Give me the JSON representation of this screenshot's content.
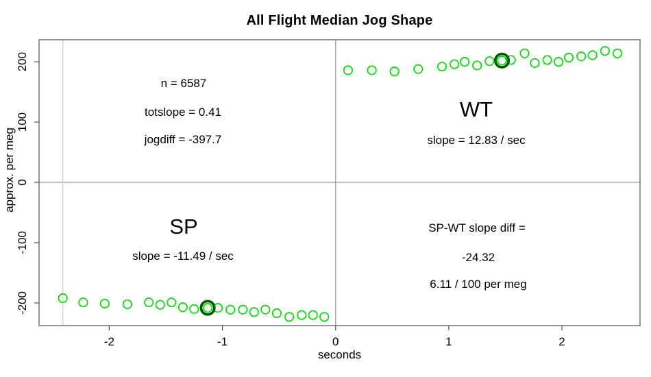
{
  "chart_data": {
    "type": "scatter",
    "title": "All Flight Median Jog Shape",
    "xlabel": "seconds",
    "ylabel": "approx. per meg",
    "xlim": [
      -2.62,
      2.69
    ],
    "ylim": [
      -237.5,
      236.5
    ],
    "x_ticks": [
      -2,
      -1,
      0,
      1,
      2
    ],
    "y_ticks": [
      -200,
      -100,
      0,
      100,
      200
    ],
    "grid": false,
    "legend": "none",
    "point_color": "#00dd00",
    "highlight_color": "#005c00",
    "axis_color": "#4f4f4f",
    "marker": "open-circle",
    "series": [
      {
        "name": "SP",
        "points": [
          [
            -2.41,
            -192
          ],
          [
            -2.23,
            -199
          ],
          [
            -2.04,
            -201
          ],
          [
            -1.84,
            -202
          ],
          [
            -1.65,
            -199
          ],
          [
            -1.55,
            -203
          ],
          [
            -1.45,
            -199
          ],
          [
            -1.35,
            -207
          ],
          [
            -1.25,
            -210
          ],
          [
            -1.13,
            -208
          ],
          [
            -1.04,
            -208
          ],
          [
            -0.93,
            -211
          ],
          [
            -0.82,
            -211
          ],
          [
            -0.72,
            -215
          ],
          [
            -0.62,
            -211
          ],
          [
            -0.52,
            -217
          ],
          [
            -0.41,
            -223
          ],
          [
            -0.3,
            -220
          ],
          [
            -0.2,
            -220
          ],
          [
            -0.1,
            -223
          ]
        ],
        "highlight": [
          -1.13,
          -208
        ]
      },
      {
        "name": "WT",
        "points": [
          [
            0.11,
            186
          ],
          [
            0.32,
            186
          ],
          [
            0.52,
            184
          ],
          [
            0.73,
            188
          ],
          [
            0.94,
            192
          ],
          [
            1.05,
            196
          ],
          [
            1.14,
            200
          ],
          [
            1.25,
            194
          ],
          [
            1.36,
            201
          ],
          [
            1.47,
            202
          ],
          [
            1.55,
            203
          ],
          [
            1.67,
            214
          ],
          [
            1.76,
            198
          ],
          [
            1.87,
            203
          ],
          [
            1.97,
            200
          ],
          [
            2.06,
            207
          ],
          [
            2.17,
            209
          ],
          [
            2.27,
            211
          ],
          [
            2.38,
            218
          ],
          [
            2.49,
            214
          ]
        ],
        "highlight": [
          1.47,
          202
        ]
      }
    ],
    "reference_lines": [
      {
        "axis": "h",
        "value": 0,
        "color": "#a3a3a3"
      },
      {
        "axis": "v",
        "value": 0,
        "color": "#a3a3a3"
      },
      {
        "axis": "v",
        "value": -2.41,
        "color": "#d2d2d2"
      }
    ],
    "annotations": {
      "n": "n = 6587",
      "totslope": "totslope = 0.41",
      "jogdiff": "jogdiff = -397.7",
      "wt": "WT",
      "wt_slope": "slope = 12.83 / sec",
      "sp": "SP",
      "sp_slope": "slope = -11.49 / sec",
      "diff_line1": "SP-WT slope diff =",
      "diff_line2": "-24.32",
      "diff_line3": "6.11 / 100 per meg"
    },
    "stats": {
      "n": 6587,
      "totslope": 0.41,
      "jogdiff": -397.7,
      "wt_slope_per_sec": 12.83,
      "sp_slope_per_sec": -11.49,
      "sp_wt_slope_diff": -24.32,
      "slope_diff_per_100_per_meg": 6.11
    }
  }
}
